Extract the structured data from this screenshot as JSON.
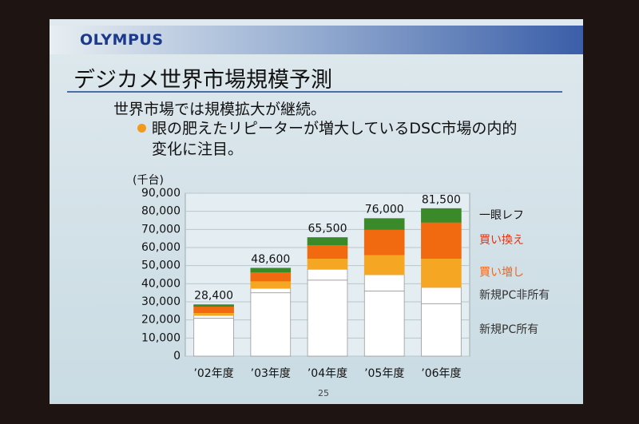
{
  "logo": "OLYMPUS",
  "title": "デジカメ世界市場規模予測",
  "bullets": [
    "世界市場では規模拡大が継続。",
    "眼の肥えたリピーターが増大しているDSC市場の内的変化に注目。"
  ],
  "page_number": "25",
  "chart_data": {
    "type": "stacked-bar",
    "y_label": "(千台)",
    "categories": [
      "’02年度",
      "’03年度",
      "’04年度",
      "’05年度",
      "’06年度"
    ],
    "series": [
      {
        "name": "新規PC所有",
        "color": "#ffffff",
        "values": [
          21000,
          35000,
          42000,
          36000,
          29000
        ]
      },
      {
        "name": "新規PC非所有",
        "color": "#ffffff",
        "values": [
          1500,
          2500,
          6000,
          9000,
          9000
        ]
      },
      {
        "name": "買い増し",
        "color": "#f5a623",
        "values": [
          1500,
          4000,
          6000,
          11000,
          16000
        ]
      },
      {
        "name": "買い換え",
        "color": "#f26a10",
        "values": [
          3500,
          5000,
          7500,
          14000,
          20000
        ]
      },
      {
        "name": "一眼レフ",
        "color": "#3a8a2a",
        "values": [
          900,
          2100,
          4000,
          6000,
          7500
        ]
      }
    ],
    "totals": [
      28400,
      48600,
      65500,
      76000,
      81500
    ],
    "total_labels": [
      "28,400",
      "48,600",
      "65,500",
      "76,000",
      "81,500"
    ],
    "ylim": [
      0,
      90000
    ],
    "yticks": [
      0,
      {
        "value": 10000,
        "label": "10,000"
      },
      {
        "value": 20000,
        "label": "20,000"
      },
      {
        "value": 30000,
        "label": "30,000"
      },
      {
        "value": 40000,
        "label": "40,000"
      },
      {
        "value": 50000,
        "label": "50,000"
      },
      {
        "value": 60000,
        "label": "60,000"
      },
      {
        "value": 70000,
        "label": "70,000"
      },
      {
        "value": 80000,
        "label": "80,000"
      },
      {
        "value": 90000,
        "label": "90,000"
      }
    ],
    "grid": true
  }
}
